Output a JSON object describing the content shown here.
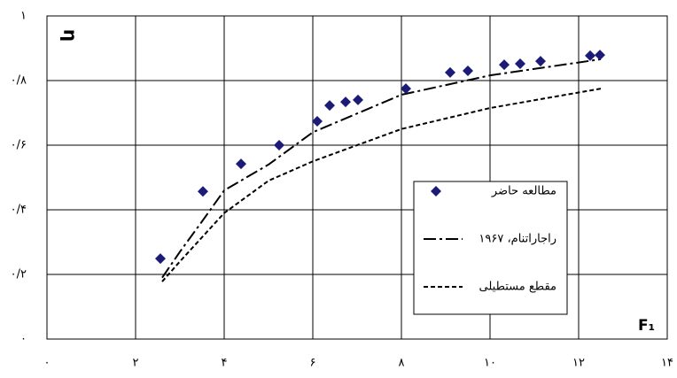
{
  "chart_data": {
    "type": "line",
    "xlabel": "F₁",
    "ylabel": "η",
    "xlim": [
      0,
      14
    ],
    "ylim": [
      0,
      1
    ],
    "xticks": [
      {
        "value": 0,
        "label": "۰"
      },
      {
        "value": 2,
        "label": "۲"
      },
      {
        "value": 4,
        "label": "۴"
      },
      {
        "value": 6,
        "label": "۶"
      },
      {
        "value": 8,
        "label": "۸"
      },
      {
        "value": 10,
        "label": "۱۰"
      },
      {
        "value": 12,
        "label": "۱۲"
      },
      {
        "value": 14,
        "label": "۱۴"
      }
    ],
    "yticks": [
      {
        "value": 0,
        "label": "۰"
      },
      {
        "value": 0.2,
        "label": "۰/۲"
      },
      {
        "value": 0.4,
        "label": "۰/۴"
      },
      {
        "value": 0.6,
        "label": "۰/۶"
      },
      {
        "value": 0.8,
        "label": "۰/۸"
      },
      {
        "value": 1,
        "label": "۱"
      }
    ],
    "grid": true,
    "series": [
      {
        "name": "مطالعه حاضر",
        "type": "scatter",
        "color": "#1c1c78",
        "x": [
          2.56,
          3.52,
          4.38,
          5.24,
          6.1,
          6.38,
          6.74,
          7.02,
          8.1,
          9.1,
          9.5,
          10.32,
          10.68,
          11.14,
          12.26,
          12.48
        ],
        "values": [
          0.249,
          0.457,
          0.542,
          0.6,
          0.674,
          0.723,
          0.734,
          0.74,
          0.775,
          0.825,
          0.83,
          0.849,
          0.852,
          0.86,
          0.877,
          0.879
        ]
      },
      {
        "name": "راجاراتنام، ۱۹۶۷",
        "type": "line",
        "style": "dash-dot",
        "color": "#000000",
        "x": [
          2.6,
          3,
          3.5,
          4,
          5,
          6,
          8,
          10,
          12.5
        ],
        "values": [
          0.19,
          0.27,
          0.364,
          0.46,
          0.54,
          0.64,
          0.756,
          0.816,
          0.866
        ]
      },
      {
        "name": "مقطع مستطیلی",
        "type": "line",
        "style": "dashed",
        "color": "#000000",
        "x": [
          2.6,
          3,
          4,
          5,
          6,
          7,
          8,
          10,
          12.5
        ],
        "values": [
          0.178,
          0.24,
          0.39,
          0.49,
          0.55,
          0.6,
          0.65,
          0.715,
          0.775
        ]
      }
    ]
  }
}
